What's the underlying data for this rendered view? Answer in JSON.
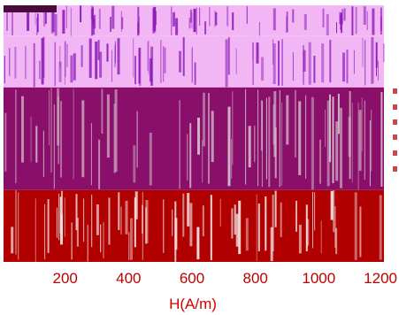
{
  "chart_data": {
    "type": "heatmap",
    "title": "",
    "xlabel": "H(A/m)",
    "ylabel": "",
    "xlim": [
      0,
      1200
    ],
    "x_ticks": [
      200,
      400,
      600,
      800,
      1000,
      1200
    ],
    "x_tick_labels": [
      "200",
      "400",
      "600",
      "800",
      "1000",
      "1200"
    ],
    "grid": false,
    "legend": "none",
    "bands": [
      {
        "name": "",
        "color": "#f2b6f4",
        "stripe_color": "#8a18b8"
      },
      {
        "name": "",
        "color": "#8a0f6a",
        "stripe_color": "#d6c0cc"
      },
      {
        "name": "",
        "color": "#b00000",
        "stripe_color": "#f2e2e2"
      }
    ],
    "rows": [
      {
        "band": 0,
        "y0": 0,
        "y1": 0.6
      },
      {
        "band": 0,
        "y0": 0.6,
        "y1": 1.6
      },
      {
        "band": 1,
        "y0": 1.6,
        "y1": 3.6
      },
      {
        "band": 2,
        "y0": 3.6,
        "y1": 5.0
      }
    ],
    "colors": {
      "tick_text": "#c00000",
      "axis_label": "#d00000",
      "side_text": "#c01818"
    }
  }
}
